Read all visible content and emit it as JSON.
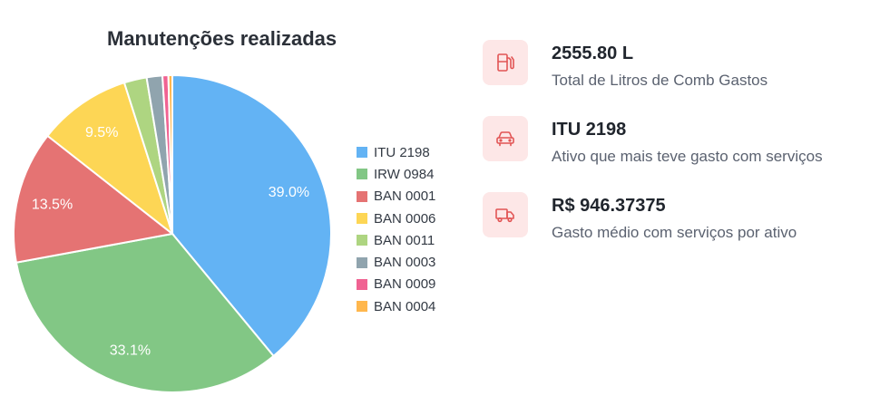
{
  "chart_data": {
    "type": "pie",
    "title": "Manutenções realizadas",
    "categories": [
      "ITU 2198",
      "IRW 0984",
      "BAN 0001",
      "BAN 0006",
      "BAN 0011",
      "BAN 0003",
      "BAN 0009",
      "BAN 0004"
    ],
    "values": [
      39.0,
      33.1,
      13.5,
      9.5,
      2.3,
      1.6,
      0.6,
      0.4
    ],
    "value_labels": [
      "39.0%",
      "33.1%",
      "13.5%",
      "9.5%",
      "",
      "",
      "",
      ""
    ],
    "colors": [
      "#63b3f4",
      "#82c785",
      "#e57373",
      "#fdd655",
      "#aed581",
      "#90a4ae",
      "#f06292",
      "#ffb74d"
    ],
    "legend_position": "right",
    "start_angle_deg": 0,
    "direction": "clockwise"
  },
  "stats": [
    {
      "icon": "fuel-pump-icon",
      "value": "2555.80 L",
      "label": "Total de Litros de Comb Gastos"
    },
    {
      "icon": "car-icon",
      "value": "ITU 2198",
      "label": "Ativo que mais teve gasto com serviços"
    },
    {
      "icon": "truck-icon",
      "value": "R$ 946.37375",
      "label": "Gasto médio com serviços por ativo"
    }
  ],
  "colors": {
    "icon_bg": "#fde7e7",
    "icon_stroke": "#e25555"
  }
}
